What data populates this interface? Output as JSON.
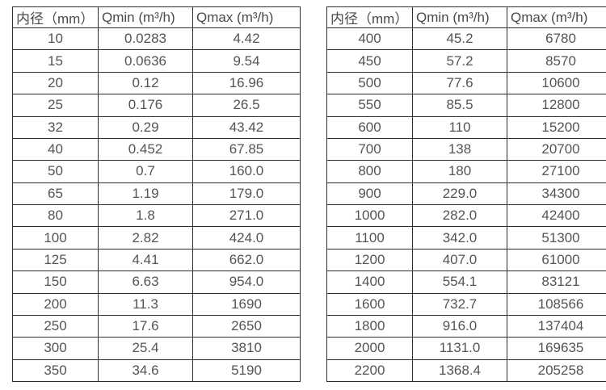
{
  "colors": {
    "background": "#ffffff",
    "border": "#2e2e2e",
    "text": "#545454"
  },
  "tables": [
    {
      "name": "flow-spec-table-small-diameters",
      "column_names": [
        "diameter",
        "qmin",
        "qmax"
      ],
      "headers": [
        "内径（mm）",
        "Qmin (m³/h)",
        "Qmax (m³/h)"
      ],
      "rows": [
        [
          "10",
          "0.0283",
          "4.42"
        ],
        [
          "15",
          "0.0636",
          "9.54"
        ],
        [
          "20",
          "0.12",
          "16.96"
        ],
        [
          "25",
          "0.176",
          "26.5"
        ],
        [
          "32",
          "0.29",
          "43.42"
        ],
        [
          "40",
          "0.452",
          "67.85"
        ],
        [
          "50",
          "0.7",
          "160.0"
        ],
        [
          "65",
          "1.19",
          "179.0"
        ],
        [
          "80",
          "1.8",
          "271.0"
        ],
        [
          "100",
          "2.82",
          "424.0"
        ],
        [
          "125",
          "4.41",
          "662.0"
        ],
        [
          "150",
          "6.63",
          "954.0"
        ],
        [
          "200",
          "11.3",
          "1690"
        ],
        [
          "250",
          "17.6",
          "2650"
        ],
        [
          "300",
          "25.4",
          "3810"
        ],
        [
          "350",
          "34.6",
          "5190"
        ]
      ]
    },
    {
      "name": "flow-spec-table-large-diameters",
      "column_names": [
        "diameter",
        "qmin",
        "qmax"
      ],
      "headers": [
        "内径（mm）",
        "Qmin (m³/h)",
        "Qmax (m³/h)"
      ],
      "rows": [
        [
          "400",
          "45.2",
          "6780"
        ],
        [
          "450",
          "57.2",
          "8570"
        ],
        [
          "500",
          "77.6",
          "10600"
        ],
        [
          "550",
          "85.5",
          "12800"
        ],
        [
          "600",
          "110",
          "15200"
        ],
        [
          "700",
          "138",
          "20700"
        ],
        [
          "800",
          "180",
          "27100"
        ],
        [
          "900",
          "229.0",
          "34300"
        ],
        [
          "1000",
          "282.0",
          "42400"
        ],
        [
          "1100",
          "342.0",
          "51300"
        ],
        [
          "1200",
          "407.0",
          "61000"
        ],
        [
          "1400",
          "554.1",
          "83121"
        ],
        [
          "1600",
          "732.7",
          "108566"
        ],
        [
          "1800",
          "916.0",
          "137404"
        ],
        [
          "2000",
          "1131.0",
          "169635"
        ],
        [
          "2200",
          "1368.4",
          "205258"
        ]
      ]
    }
  ]
}
